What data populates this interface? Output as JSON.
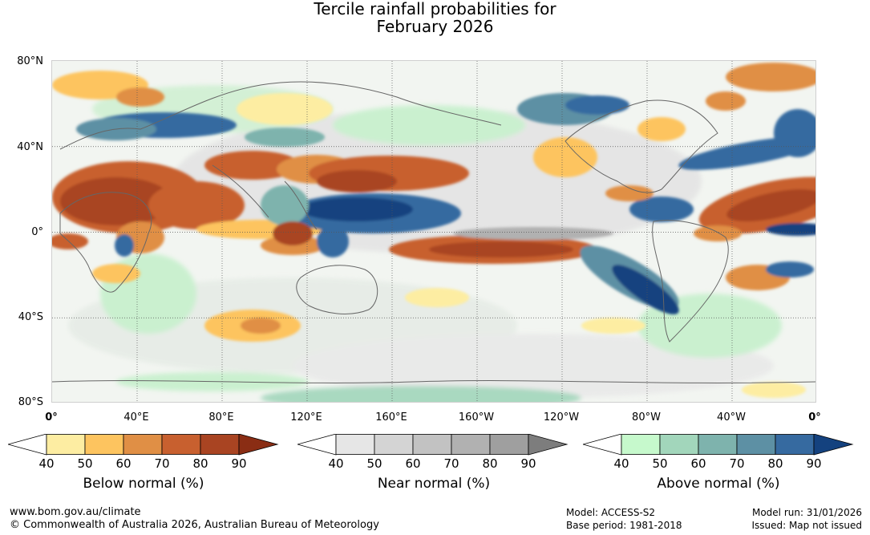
{
  "title_line1": "Tercile rainfall probabilities for",
  "title_line2": "February 2026",
  "lat_labels": [
    "80°N",
    "40°N",
    "0°",
    "40°S",
    "80°S"
  ],
  "lon_labels": [
    "0°",
    "40°E",
    "80°E",
    "120°E",
    "160°E",
    "160°W",
    "120°W",
    "80°W",
    "40°W",
    "0°"
  ],
  "legends": [
    {
      "title": "Below normal (%)",
      "ticks": [
        "40",
        "50",
        "60",
        "70",
        "80",
        "90"
      ],
      "colors": [
        "#ffffff",
        "#fdeda2",
        "#fdc45f",
        "#e08f45",
        "#c8602f",
        "#a94422",
        "#8a2d14"
      ]
    },
    {
      "title": "Near normal (%)",
      "ticks": [
        "40",
        "50",
        "60",
        "70",
        "80",
        "90"
      ],
      "colors": [
        "#ffffff",
        "#e6e6e6",
        "#d4d4d4",
        "#c2c2c2",
        "#b1b1b1",
        "#9f9f9f",
        "#7d7d7d"
      ]
    },
    {
      "title": "Above normal (%)",
      "ticks": [
        "40",
        "50",
        "60",
        "70",
        "80",
        "90"
      ],
      "colors": [
        "#ffffff",
        "#c6f9cc",
        "#a2d6bb",
        "#7eb3ad",
        "#5d90a4",
        "#366aa0",
        "#14427f"
      ]
    }
  ],
  "footer": {
    "site": "www.bom.gov.au/climate",
    "copyright": "© Commonwealth of Australia 2026, Australian Bureau of Meteorology",
    "model": "Model: ACCESS-S2",
    "base_period": "Base period: 1981-2018",
    "model_run": "Model run: 31/01/2026",
    "issued": "Issued: Map not issued"
  }
}
